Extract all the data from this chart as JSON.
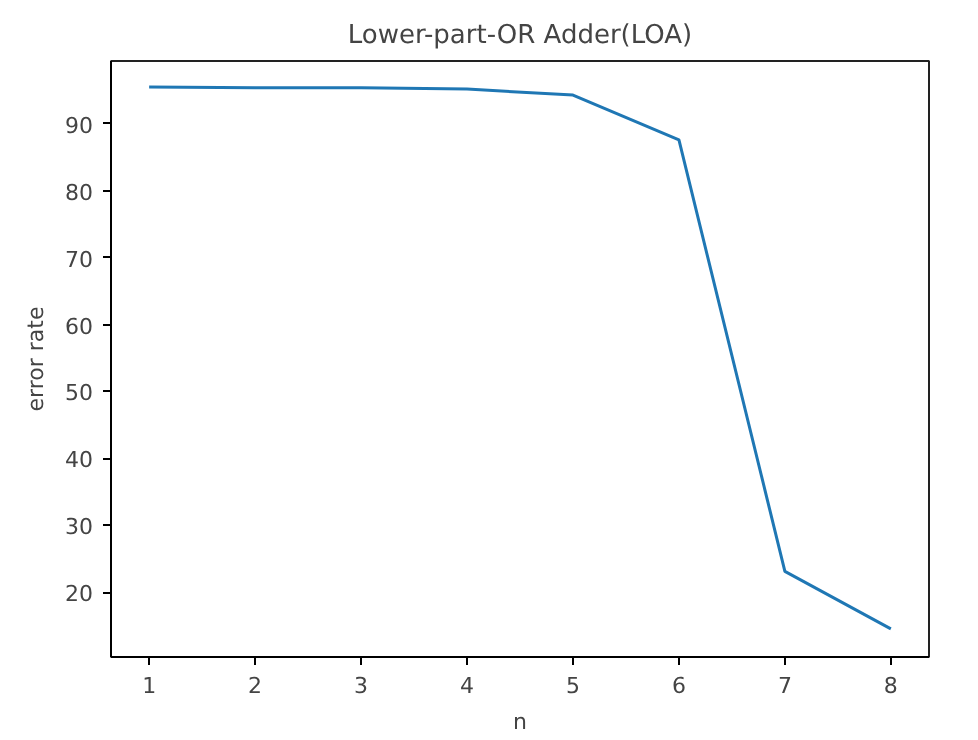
{
  "chart_data": {
    "type": "line",
    "title": "Lower-part-OR Adder(LOA)",
    "xlabel": "n",
    "ylabel": "error rate",
    "x": [
      1,
      2,
      3,
      4,
      5,
      6,
      7,
      8
    ],
    "series": [
      {
        "color": "#1f77b4",
        "values": [
          95.5,
          95.4,
          95.4,
          95.2,
          94.3,
          87.6,
          23.1,
          14.5
        ]
      }
    ],
    "xlim": [
      0.64,
      8.36
    ],
    "ylim": [
      10.3,
      99.4
    ],
    "xticks": [
      1,
      2,
      3,
      4,
      5,
      6,
      7,
      8
    ],
    "yticks": [
      20,
      30,
      40,
      50,
      60,
      70,
      80,
      90
    ],
    "grid": false,
    "marker": "none",
    "line_style": "solid"
  }
}
